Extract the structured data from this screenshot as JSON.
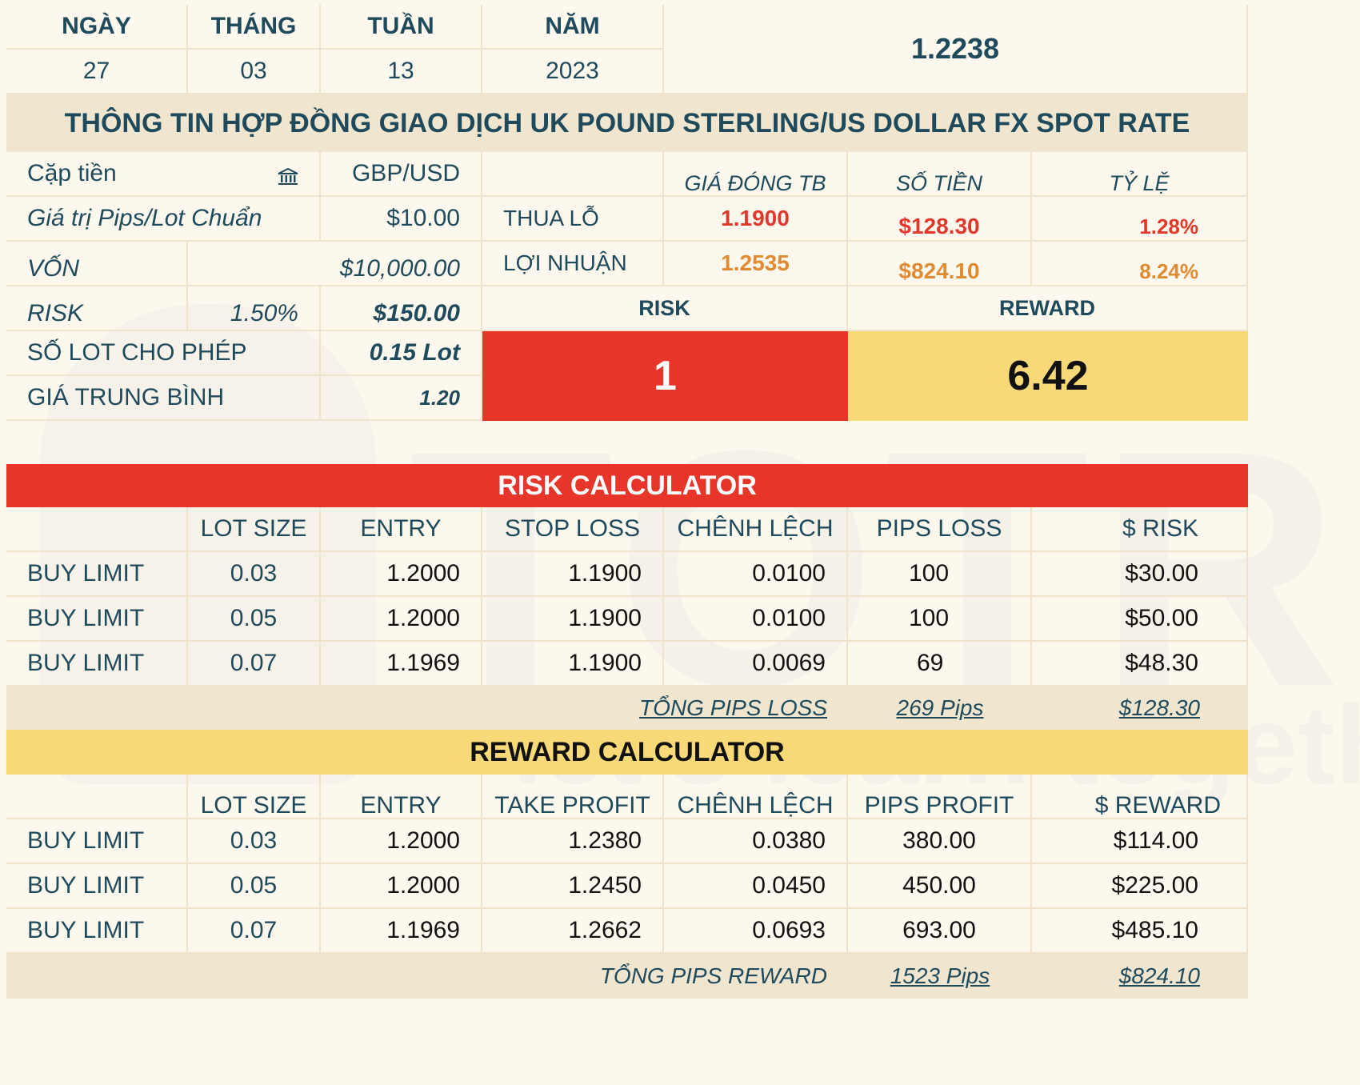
{
  "date_header": {
    "day_label": "NGÀY",
    "month_label": "THÁNG",
    "week_label": "TUẦN",
    "year_label": "NĂM",
    "day": "27",
    "month": "03",
    "week": "13",
    "year": "2023",
    "price": "1.2238"
  },
  "contract_title": "THÔNG TIN HỢP ĐỒNG GIAO DỊCH UK POUND STERLING/US DOLLAR FX SPOT RATE",
  "info": {
    "pair_label": "Cặp tiền",
    "pair_value": "GBP/USD",
    "pip_value_label": "Giá trị Pips/Lot Chuẩn",
    "pip_value": "$10.00",
    "capital_label": "VỐN",
    "capital_value": "$10,000.00",
    "risk_label": "RISK",
    "risk_pct": "1.50%",
    "risk_value": "$150.00",
    "lots_label": "SỐ LOT CHO PHÉP",
    "lots_value": "0.15 Lot",
    "avg_label": "GIÁ TRUNG BÌNH",
    "avg_value": "1.20"
  },
  "summary": {
    "col_close": "GIÁ ĐÓNG TB",
    "col_amount": "SỐ TIỀN",
    "col_ratio": "TỶ LỆ",
    "loss_label": "THUA LỖ",
    "loss_close": "1.1900",
    "loss_amount": "$128.30",
    "loss_ratio": "1.28%",
    "profit_label": "LỢI NHUẬN",
    "profit_close": "1.2535",
    "profit_amount": "$824.10",
    "profit_ratio": "8.24%",
    "risk_header": "RISK",
    "reward_header": "REWARD",
    "risk_value": "1",
    "reward_value": "6.42"
  },
  "risk_calc": {
    "title": "RISK CALCULATOR",
    "headers": [
      "",
      "LOT SIZE",
      "ENTRY",
      "STOP LOSS",
      "CHÊNH LỆCH",
      "PIPS LOSS",
      "$ RISK"
    ],
    "rows": [
      [
        "BUY LIMIT",
        "0.03",
        "1.2000",
        "1.1900",
        "0.0100",
        "100",
        "$30.00"
      ],
      [
        "BUY LIMIT",
        "0.05",
        "1.2000",
        "1.1900",
        "0.0100",
        "100",
        "$50.00"
      ],
      [
        "BUY LIMIT",
        "0.07",
        "1.1969",
        "1.1900",
        "0.0069",
        "69",
        "$48.30"
      ]
    ],
    "total_label": "TỔNG PIPS LOSS",
    "total_pips": "269 Pips",
    "total_amount": "$128.30"
  },
  "reward_calc": {
    "title": "REWARD CALCULATOR",
    "headers": [
      "",
      "LOT SIZE",
      "ENTRY",
      "TAKE PROFIT",
      "CHÊNH LỆCH",
      "PIPS PROFIT",
      "$ REWARD"
    ],
    "rows": [
      [
        "BUY LIMIT",
        "0.03",
        "1.2000",
        "1.2380",
        "0.0380",
        "380.00",
        "$114.00"
      ],
      [
        "BUY LIMIT",
        "0.05",
        "1.2000",
        "1.2450",
        "0.0450",
        "450.00",
        "$225.00"
      ],
      [
        "BUY LIMIT",
        "0.07",
        "1.1969",
        "1.2662",
        "0.0693",
        "693.00",
        "$485.10"
      ]
    ],
    "total_label": "TỔNG PIPS REWARD",
    "total_pips": "1523 Pips",
    "total_amount": "$824.10"
  },
  "watermark": {
    "brand": "TOTRIEU",
    "tagline": "let's learn together"
  },
  "colors": {
    "background": "#fdf8ee",
    "title_band": "#f0e6cf",
    "risk_red": "#e8352a",
    "reward_yellow": "#f7d977",
    "text_teal": "#1f4a5c"
  }
}
